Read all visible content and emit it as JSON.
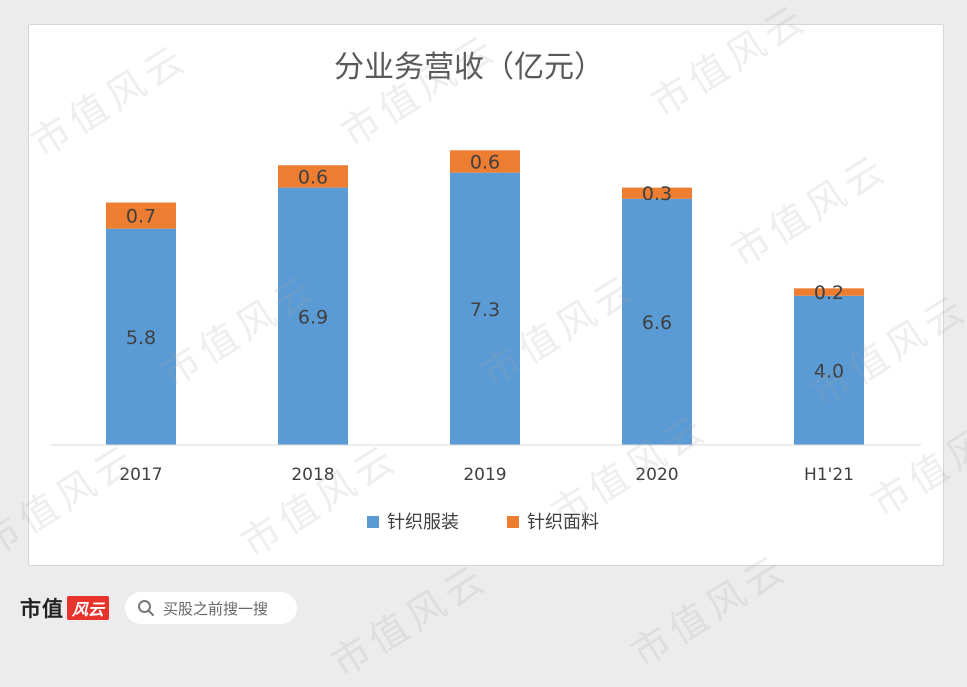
{
  "chart_data": {
    "type": "bar",
    "stacked": true,
    "title": "分业务营收（亿元）",
    "categories": [
      "2017",
      "2018",
      "2019",
      "2020",
      "H1'21"
    ],
    "series": [
      {
        "name": "针织服装",
        "values": [
          5.8,
          6.9,
          7.3,
          6.6,
          4.0
        ],
        "color": "#5b9bd5"
      },
      {
        "name": "针织面料",
        "values": [
          0.7,
          0.6,
          0.6,
          0.3,
          0.2
        ],
        "color": "#ed7d31"
      }
    ],
    "value_labels": [
      [
        "5.8",
        "6.9",
        "7.3",
        "6.6",
        "4.0"
      ],
      [
        "0.7",
        "0.6",
        "0.6",
        "0.3",
        "0.2"
      ]
    ],
    "xlabel": "",
    "ylabel": "",
    "ylim": [
      0,
      8.9
    ],
    "grid": false,
    "legend_position": "bottom"
  },
  "watermark": {
    "text": "市值风云"
  },
  "footer": {
    "brand": "市值",
    "badge": "风云",
    "search_placeholder": "买股之前搜一搜"
  }
}
